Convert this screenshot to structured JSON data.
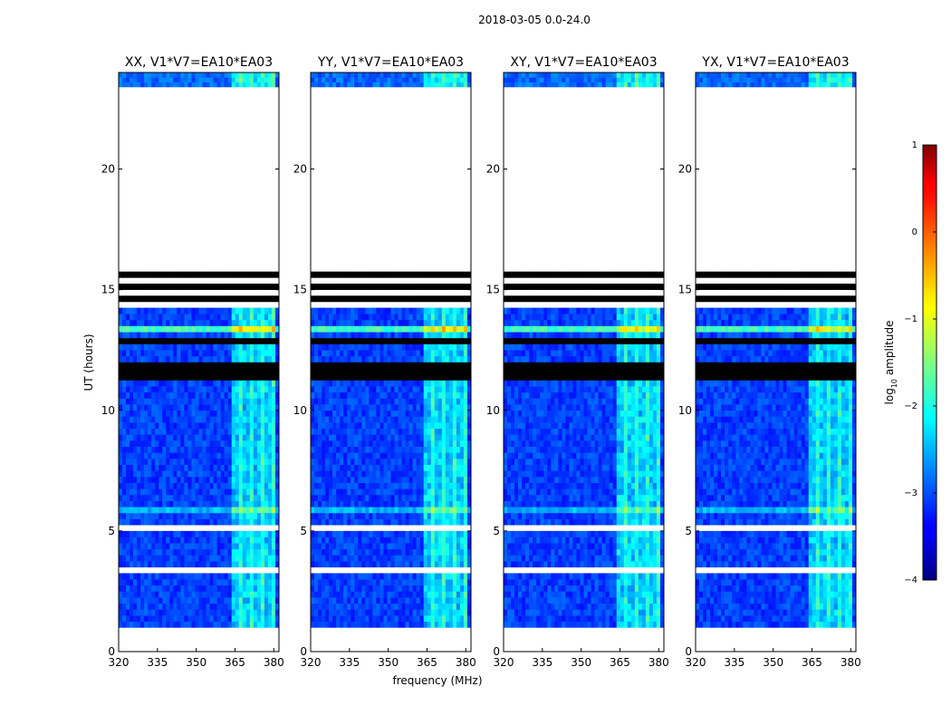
{
  "figure": {
    "suptitle": "2018-03-05 0.0-24.0",
    "ylabel": "UT (hours)",
    "xlabel": "frequency (MHz)"
  },
  "chart_data": {
    "type": "heatmap",
    "title": "2018-03-05 0.0-24.0",
    "xlabel": "frequency (MHz)",
    "ylabel": "UT (hours)",
    "xlim": [
      320,
      382
    ],
    "ylim": [
      0,
      24
    ],
    "x_ticks": [
      320,
      335,
      350,
      365,
      380
    ],
    "y_ticks": [
      0,
      5,
      10,
      15,
      20
    ],
    "panels": [
      {
        "title": "XX, V1*V7=EA10*EA03",
        "polarization": "XX"
      },
      {
        "title": "YY, V1*V7=EA10*EA03",
        "polarization": "YY"
      },
      {
        "title": "XY, V1*V7=EA10*EA03",
        "polarization": "XY"
      },
      {
        "title": "YX, V1*V7=EA10*EA03",
        "polarization": "YX"
      }
    ],
    "colorbar": {
      "label": "log10 amplitude",
      "label_main": "log",
      "label_sub": "10",
      "label_tail": " amplitude",
      "range": [
        -4,
        1
      ],
      "ticks": [
        1,
        0,
        -1,
        -2,
        -3,
        -4
      ],
      "tick_labels": [
        "1",
        "0",
        "−1",
        "−2",
        "−3",
        "−4"
      ],
      "colormap": "jet"
    },
    "data_segments_hours": {
      "observed_low": [
        1.0,
        15.8
      ],
      "observed_high": [
        23.2,
        24.0
      ],
      "blank_gap": [
        15.8,
        23.2
      ]
    },
    "rfi_band_MHz": [
      363,
      380
    ]
  }
}
